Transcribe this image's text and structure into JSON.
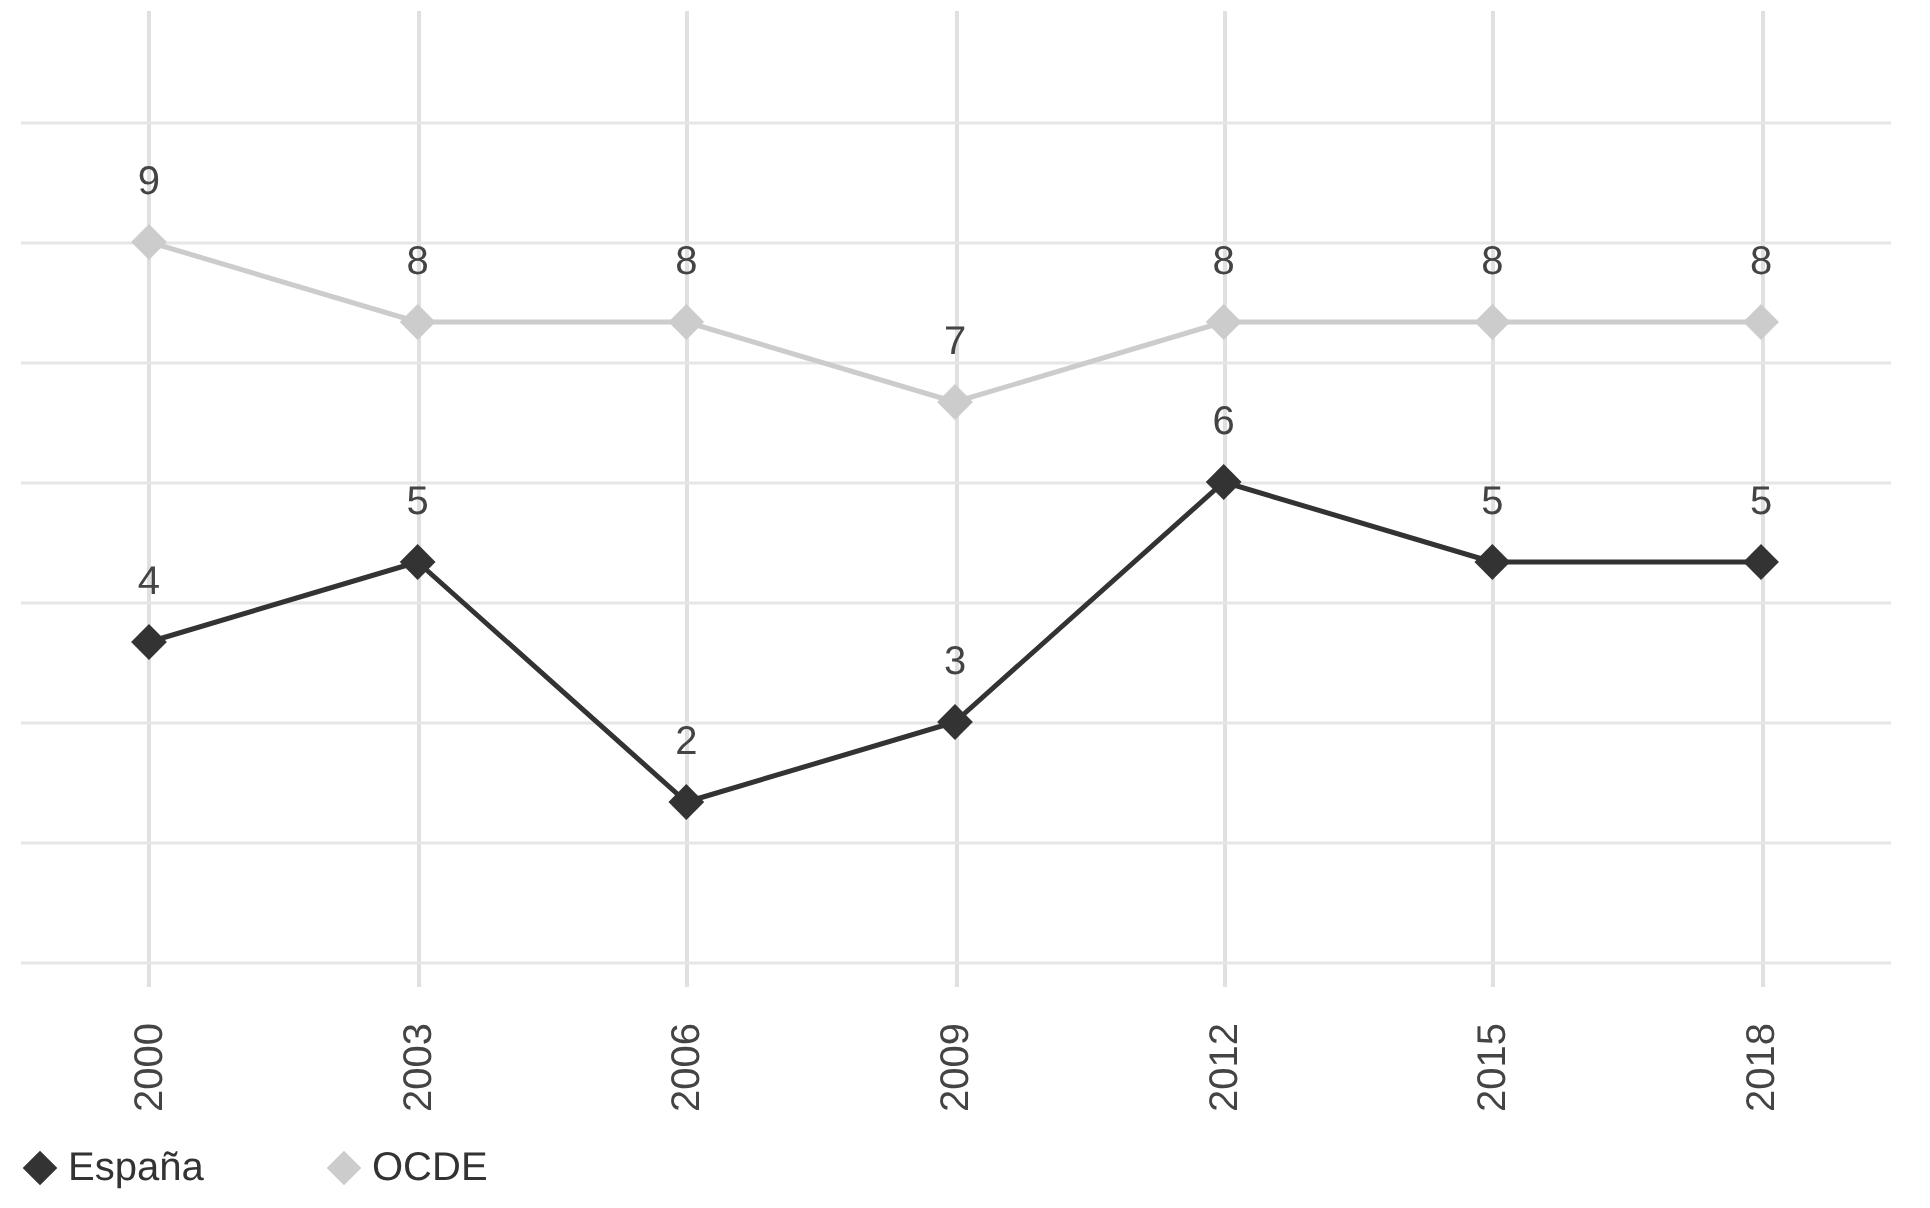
{
  "chart_data": {
    "type": "line",
    "categories": [
      "2000",
      "2003",
      "2006",
      "2009",
      "2012",
      "2015",
      "2018"
    ],
    "series": [
      {
        "name": "España",
        "color": "#333333",
        "values": [
          4,
          5,
          2,
          3,
          6,
          5,
          5
        ]
      },
      {
        "name": "OCDE",
        "color": "#cccccc",
        "values": [
          9,
          8,
          8,
          7,
          8,
          8,
          8
        ]
      }
    ],
    "ylim": [
      -0.3,
      11.9
    ],
    "yticks": [
      {
        "value": 0,
        "label": null
      },
      {
        "value": 1.5,
        "label": null
      },
      {
        "value": 3,
        "label": null
      },
      {
        "value": 4.5,
        "label": null
      },
      {
        "value": 6,
        "label": null
      },
      {
        "value": 7.5,
        "label": null
      },
      {
        "value": 9,
        "label": null
      },
      {
        "value": 10.5,
        "label": null
      }
    ],
    "tick_labels": "x",
    "grid": true,
    "legend": "bottom",
    "marker": "diamond",
    "line_style": "solid",
    "data_labels": true
  }
}
